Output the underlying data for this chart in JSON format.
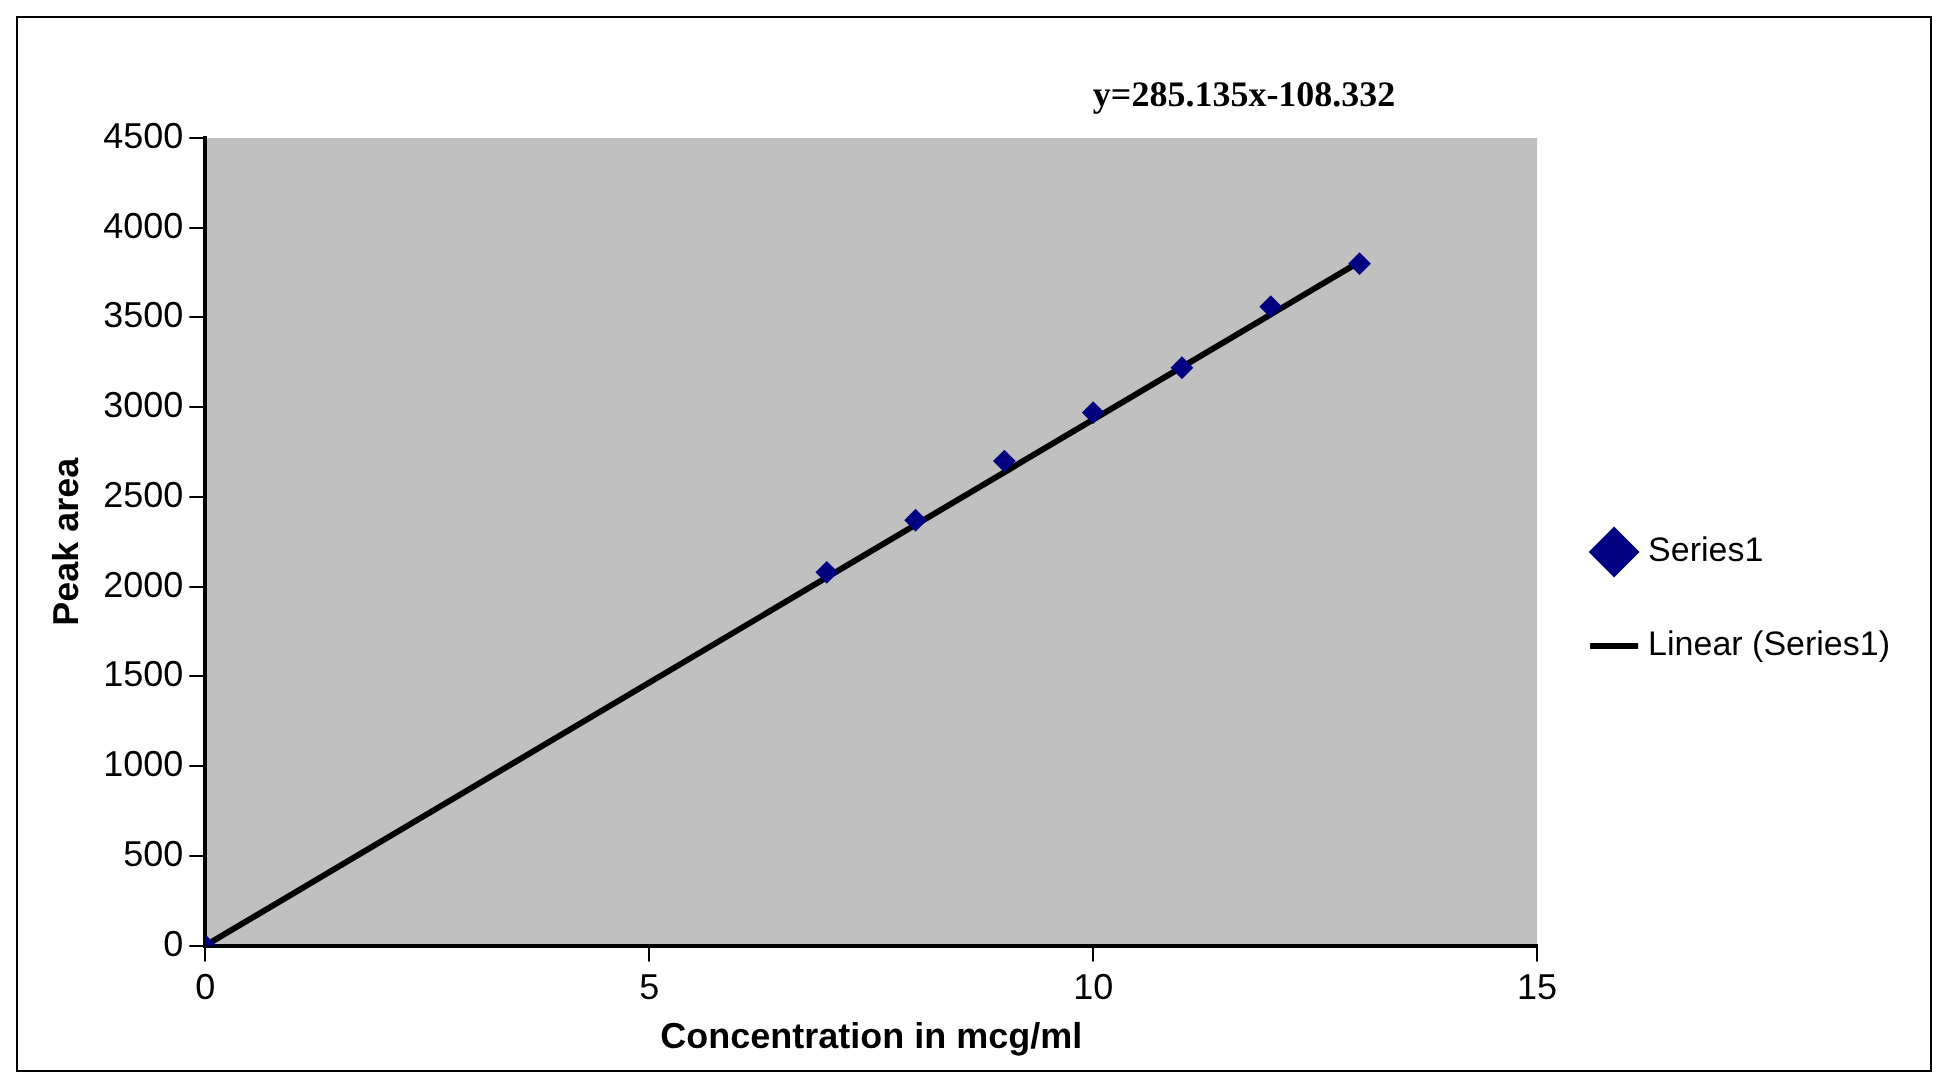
{
  "chart_data": {
    "type": "scatter",
    "xlabel": "Concentration in mcg/ml",
    "ylabel": "Peak area",
    "annotations": [
      "y=285.135x-108.332"
    ],
    "series": [
      {
        "name": "Series1",
        "type": "scatter",
        "color": "#000080",
        "x": [
          0,
          7,
          8,
          9,
          10,
          11,
          12,
          13
        ],
        "values": [
          0,
          2080,
          2370,
          2700,
          2970,
          3220,
          3560,
          3800
        ],
        "marker": "diamond"
      },
      {
        "name": "Linear (Series1)",
        "type": "line",
        "color": "#000000",
        "x": [
          0,
          13
        ],
        "values": [
          0,
          3810
        ],
        "marker": "none"
      }
    ],
    "xlim": [
      0,
      15
    ],
    "xticks": [
      0,
      5,
      10,
      15
    ],
    "ylim": [
      0,
      4500
    ],
    "yticks": [
      0,
      500,
      1000,
      1500,
      2000,
      2500,
      3000,
      3500,
      4000,
      4500
    ],
    "grid": false,
    "legend": "right"
  }
}
